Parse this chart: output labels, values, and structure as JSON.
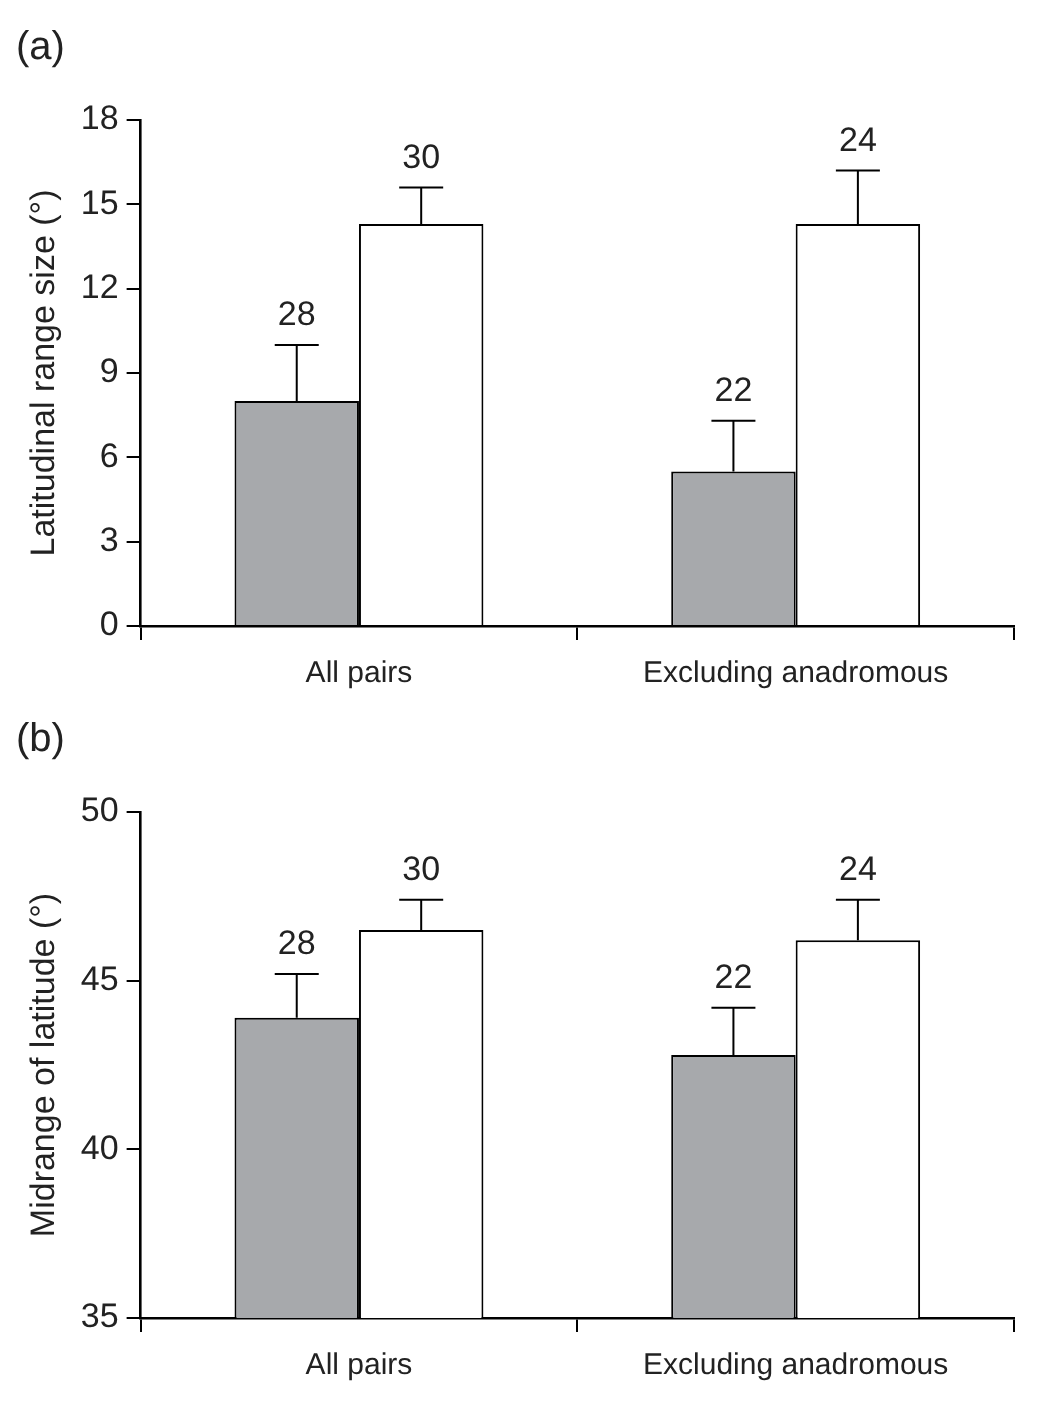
{
  "chart_data": [
    {
      "type": "bar",
      "title": "(a)",
      "ylabel": "Latitudinal range size (°)",
      "categories": [
        "All pairs",
        "Excluding anadromous"
      ],
      "ylim": [
        0,
        18
      ],
      "yticks": [
        0,
        3,
        6,
        9,
        12,
        15,
        18
      ],
      "grid": false,
      "legend": false,
      "series": [
        {
          "color": "#a7a9ac",
          "values": [
            8.0,
            5.5
          ],
          "errors": [
            [
              8.0,
              10.0
            ],
            [
              5.5,
              7.3
            ]
          ]
        },
        {
          "color": "#ffffff",
          "values": [
            14.3,
            14.3
          ],
          "errors": [
            [
              14.3,
              15.6
            ],
            [
              14.3,
              16.2
            ]
          ]
        }
      ],
      "annotations": [
        "28",
        "30",
        "22",
        "24"
      ]
    },
    {
      "type": "bar",
      "title": "(b)",
      "ylabel": "Midrange of latitude (°)",
      "categories": [
        "All pairs",
        "Excluding anadromous"
      ],
      "ylim": [
        35,
        50
      ],
      "yticks": [
        35,
        40,
        45,
        50
      ],
      "grid": false,
      "legend": false,
      "series": [
        {
          "color": "#a7a9ac",
          "values": [
            43.9,
            42.8
          ],
          "errors": [
            [
              43.9,
              45.2
            ],
            [
              42.8,
              44.2
            ]
          ]
        },
        {
          "color": "#ffffff",
          "values": [
            46.5,
            46.2
          ],
          "errors": [
            [
              46.5,
              47.4
            ],
            [
              46.2,
              47.4
            ]
          ]
        }
      ],
      "annotations": [
        "28",
        "30",
        "22",
        "24"
      ]
    }
  ]
}
